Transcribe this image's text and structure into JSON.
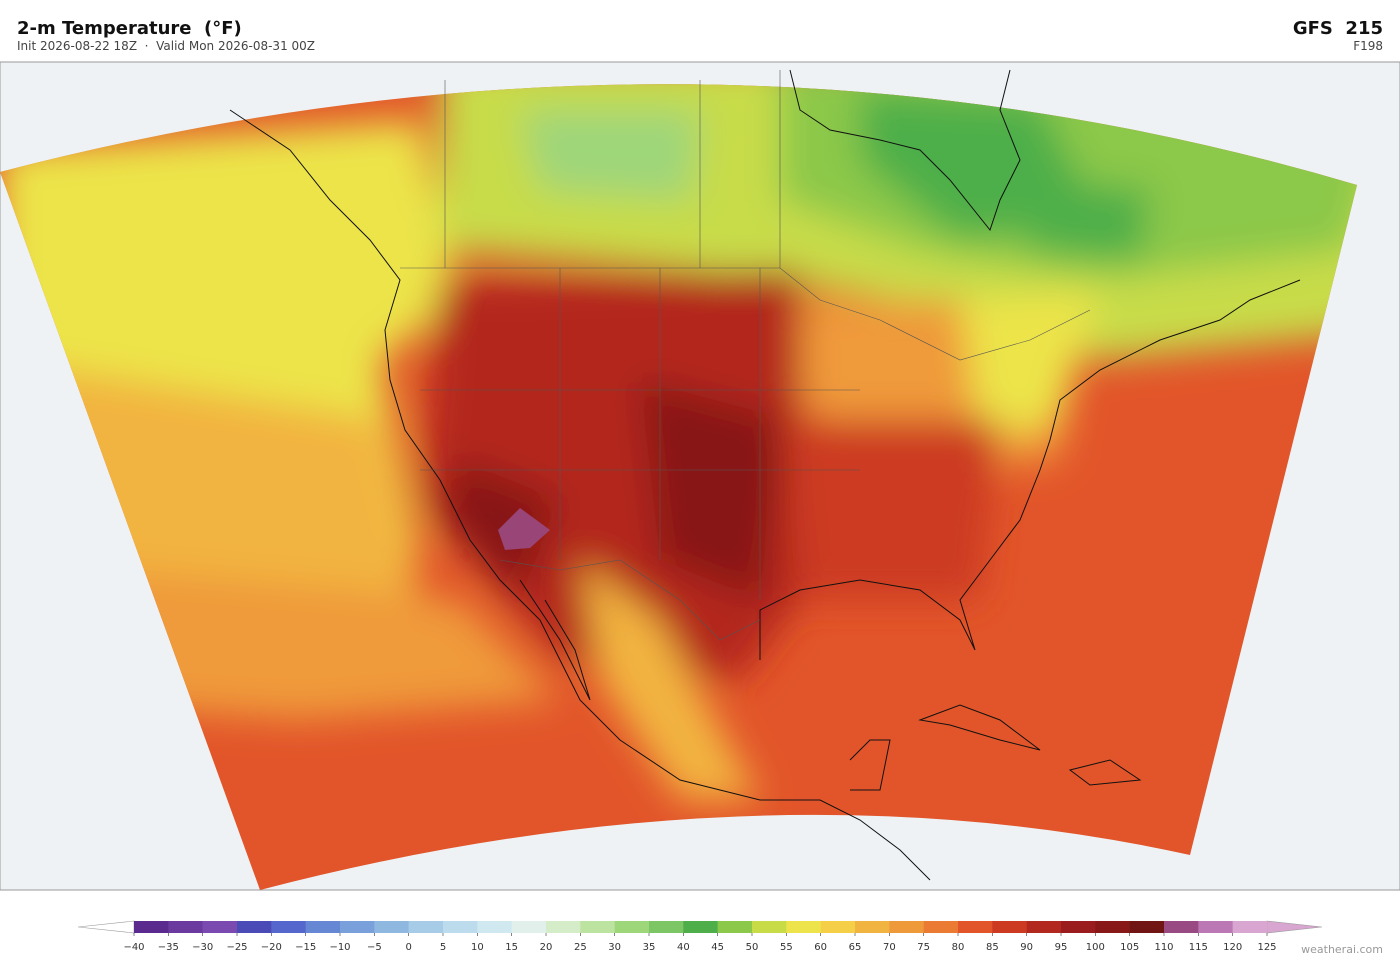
{
  "header": {
    "title": "2-m Temperature  (°F)",
    "subtitle": "Init 2026-08-22 18Z  ·  Valid Mon 2026-08-31 00Z",
    "model": "GFS  215",
    "forecast_hour": "F198"
  },
  "colorbar": {
    "lim": [
      -40,
      125
    ],
    "ticks": [
      {
        "value": -40,
        "label": "−40"
      },
      {
        "value": -35,
        "label": "−35"
      },
      {
        "value": -30,
        "label": "−30"
      },
      {
        "value": -25,
        "label": "−25"
      },
      {
        "value": -20,
        "label": "−20"
      },
      {
        "value": -15,
        "label": "−15"
      },
      {
        "value": -10,
        "label": "−10"
      },
      {
        "value": -5,
        "label": "−5"
      },
      0,
      5,
      10,
      15,
      20,
      25,
      30,
      35,
      40,
      45,
      50,
      55,
      60,
      65,
      70,
      75,
      80,
      85,
      90,
      95,
      100,
      105,
      110,
      115,
      120,
      125
    ],
    "colors": [
      "#5b2a8f",
      "#6b3a9f",
      "#7a4ab0",
      "#4b4bb8",
      "#5566cc",
      "#6688d4",
      "#7aa0dc",
      "#8fb8e0",
      "#a6cce8",
      "#bcdcee",
      "#d0e8f0",
      "#e2f0ec",
      "#d5ecc8",
      "#bce4a0",
      "#9ed67a",
      "#7cc666",
      "#4eaf4a",
      "#8cc84a",
      "#c8dc48",
      "#ece44a",
      "#f5cf48",
      "#f2b440",
      "#ef9a3a",
      "#eb7a32",
      "#e2552a",
      "#cc3a22",
      "#b3281e",
      "#9a1c1c",
      "#881818",
      "#701414",
      "#9a4a82",
      "#bc78b4",
      "#d8a6d0"
    ],
    "under_color": "#ffffff",
    "over_color": "#d8a6d0"
  },
  "watermark": "weatherai.com"
}
